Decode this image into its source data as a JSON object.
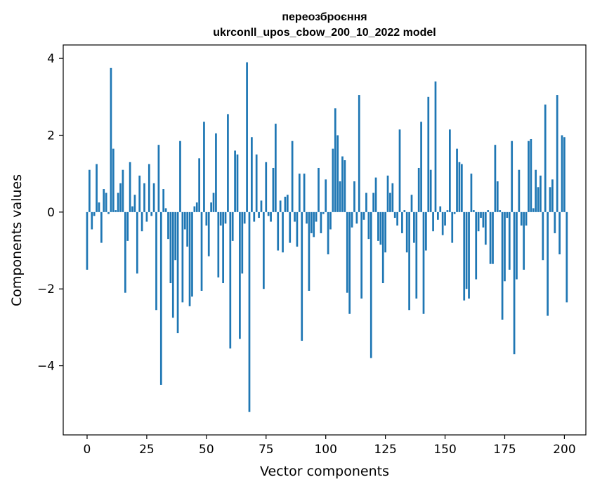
{
  "chart_data": {
    "type": "bar",
    "title_line1": "переозброєння",
    "title_line2": "ukrconll_upos_cbow_200_10_2022 model",
    "xlabel": "Vector components",
    "ylabel": "Components values",
    "xlim": [
      -10,
      209
    ],
    "ylim": [
      -5.8,
      4.35
    ],
    "xticks": [
      0,
      25,
      50,
      75,
      100,
      125,
      150,
      175,
      200
    ],
    "yticks": [
      -4,
      -2,
      0,
      2,
      4
    ],
    "ytick_labels": [
      "−4",
      "−2",
      "0",
      "2",
      "4"
    ],
    "bar_color": "#1f77b4",
    "values": [
      -1.5,
      1.1,
      -0.45,
      -0.1,
      1.25,
      0.25,
      -0.8,
      0.6,
      0.5,
      -0.05,
      3.75,
      1.65,
      0.05,
      0.5,
      0.75,
      1.1,
      -2.1,
      -0.75,
      1.3,
      0.15,
      0.45,
      -1.6,
      0.95,
      -0.5,
      0.75,
      -0.25,
      1.25,
      -0.1,
      0.75,
      -2.55,
      1.75,
      -4.5,
      0.6,
      0.1,
      -0.7,
      -1.85,
      -2.75,
      -1.25,
      -3.15,
      1.85,
      -2.35,
      -0.45,
      -0.9,
      -2.45,
      -2.2,
      0.15,
      0.25,
      1.4,
      -2.05,
      2.35,
      -0.35,
      -1.15,
      0.25,
      0.5,
      2.05,
      -1.7,
      -0.35,
      -1.85,
      -0.3,
      2.55,
      -3.55,
      -0.75,
      1.6,
      1.5,
      -3.3,
      -1.6,
      -0.3,
      3.9,
      -5.2,
      1.95,
      -0.25,
      1.5,
      -0.15,
      0.3,
      -2.0,
      1.3,
      -0.1,
      -0.25,
      1.15,
      2.3,
      -1.0,
      0.3,
      -1.05,
      0.4,
      0.45,
      -0.8,
      1.85,
      -0.25,
      -0.9,
      1.0,
      -3.35,
      1.0,
      -0.3,
      -2.05,
      -0.55,
      -0.65,
      -0.25,
      1.15,
      -0.55,
      -0.05,
      0.85,
      -1.1,
      -0.45,
      1.65,
      2.7,
      2.0,
      0.8,
      1.45,
      1.35,
      -2.1,
      -2.65,
      -0.4,
      0.8,
      -0.3,
      3.05,
      -2.25,
      -0.2,
      0.5,
      -0.7,
      -3.8,
      0.5,
      0.9,
      -0.75,
      -0.85,
      -1.85,
      -1.05,
      0.95,
      0.5,
      0.75,
      -0.15,
      -0.35,
      2.15,
      -0.55,
      0.05,
      -1.05,
      -2.55,
      0.45,
      -0.8,
      -2.25,
      1.15,
      2.35,
      -2.65,
      -1.0,
      3.0,
      1.1,
      -0.5,
      3.4,
      -0.2,
      0.15,
      -0.6,
      -0.35,
      0.05,
      2.15,
      -0.8,
      -0.05,
      1.65,
      1.3,
      1.25,
      -2.3,
      -2.0,
      -2.25,
      1.0,
      0.05,
      -1.75,
      -0.5,
      -0.15,
      -0.4,
      -0.85,
      0.05,
      -1.35,
      -1.35,
      1.75,
      0.8,
      0.05,
      -2.8,
      -1.8,
      -0.15,
      -1.5,
      1.85,
      -3.7,
      -1.75,
      1.1,
      -0.35,
      -1.5,
      -0.35,
      1.85,
      1.9,
      0.1,
      1.1,
      0.65,
      0.95,
      -1.25,
      2.8,
      -2.7,
      0.65,
      0.85,
      -0.55,
      3.05,
      -1.1,
      2.0,
      1.95,
      -2.35
    ]
  }
}
